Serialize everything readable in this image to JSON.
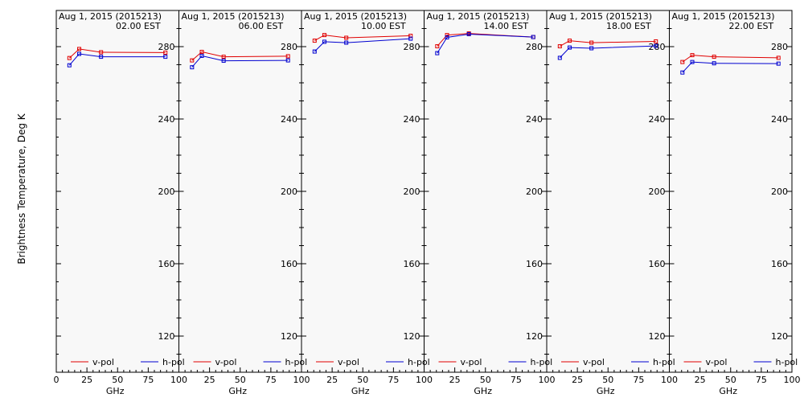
{
  "figure": {
    "ylabel": "Brightness Temperature, Deg K",
    "background": "#f8f8f8",
    "colors": {
      "v-pol": "#e00000",
      "h-pol": "#0000d0"
    }
  },
  "chart_data": [
    {
      "type": "line",
      "title": "Aug  1, 2015 (2015213)",
      "subtitle": "02.00 EST",
      "xlabel": "GHz",
      "ylabel": "Brightness Temperature, Deg K",
      "xlim": [
        0,
        100
      ],
      "ylim": [
        100,
        300
      ],
      "xticks": [
        0,
        25,
        50,
        75,
        100
      ],
      "yticks": [
        120,
        160,
        200,
        240,
        280
      ],
      "x": [
        10.7,
        18.7,
        36.5,
        89
      ],
      "series": [
        {
          "name": "v-pol",
          "color": "#e00000",
          "values": [
            273.7,
            278.7,
            276.9,
            276.7
          ]
        },
        {
          "name": "h-pol",
          "color": "#0000d0",
          "values": [
            269.7,
            276.0,
            274.4,
            274.4
          ]
        }
      ],
      "legend": "bottom"
    },
    {
      "type": "line",
      "title": "Aug  1, 2015 (2015213)",
      "subtitle": "06.00 EST",
      "xlabel": "GHz",
      "ylabel": "",
      "xlim": [
        0,
        100
      ],
      "ylim": [
        100,
        300
      ],
      "xticks": [
        0,
        25,
        50,
        75,
        100
      ],
      "yticks": [
        120,
        160,
        200,
        240,
        280
      ],
      "x": [
        10.7,
        18.7,
        36.5,
        89
      ],
      "series": [
        {
          "name": "v-pol",
          "color": "#e00000",
          "values": [
            272.4,
            277.1,
            274.4,
            274.7
          ]
        },
        {
          "name": "h-pol",
          "color": "#0000d0",
          "values": [
            268.6,
            274.9,
            272.2,
            272.4
          ]
        }
      ],
      "legend": "bottom"
    },
    {
      "type": "line",
      "title": "Aug  1, 2015 (2015213)",
      "subtitle": "10.00 EST",
      "xlabel": "GHz",
      "ylabel": "",
      "xlim": [
        0,
        100
      ],
      "ylim": [
        100,
        300
      ],
      "xticks": [
        0,
        25,
        50,
        75,
        100
      ],
      "yticks": [
        120,
        160,
        200,
        240,
        280
      ],
      "x": [
        10.7,
        18.7,
        36.5,
        89
      ],
      "series": [
        {
          "name": "v-pol",
          "color": "#e00000",
          "values": [
            283.3,
            286.4,
            284.9,
            286.0
          ]
        },
        {
          "name": "h-pol",
          "color": "#0000d0",
          "values": [
            277.3,
            282.7,
            282.2,
            284.4
          ]
        }
      ],
      "legend": "bottom"
    },
    {
      "type": "line",
      "title": "Aug  1, 2015 (2015213)",
      "subtitle": "14.00 EST",
      "xlabel": "GHz",
      "ylabel": "",
      "xlim": [
        0,
        100
      ],
      "ylim": [
        100,
        300
      ],
      "xticks": [
        0,
        25,
        50,
        75,
        100
      ],
      "yticks": [
        120,
        160,
        200,
        240,
        280
      ],
      "x": [
        10.7,
        18.7,
        36.5,
        89
      ],
      "series": [
        {
          "name": "v-pol",
          "color": "#e00000",
          "values": [
            280.2,
            286.4,
            287.3,
            285.3
          ]
        },
        {
          "name": "h-pol",
          "color": "#0000d0",
          "values": [
            276.4,
            285.1,
            286.9,
            285.3
          ]
        }
      ],
      "legend": "bottom"
    },
    {
      "type": "line",
      "title": "Aug  1, 2015 (2015213)",
      "subtitle": "18.00 EST",
      "xlabel": "GHz",
      "ylabel": "",
      "xlim": [
        0,
        100
      ],
      "ylim": [
        100,
        300
      ],
      "xticks": [
        0,
        25,
        50,
        75,
        100
      ],
      "yticks": [
        120,
        160,
        200,
        240,
        280
      ],
      "x": [
        10.7,
        18.7,
        36.5,
        89
      ],
      "series": [
        {
          "name": "v-pol",
          "color": "#e00000",
          "values": [
            280.2,
            283.3,
            282.2,
            282.9
          ]
        },
        {
          "name": "h-pol",
          "color": "#0000d0",
          "values": [
            273.8,
            279.5,
            279.1,
            280.4
          ]
        }
      ],
      "legend": "bottom"
    },
    {
      "type": "line",
      "title": "Aug  1, 2015 (2015213)",
      "subtitle": "22.00 EST",
      "xlabel": "GHz",
      "ylabel": "",
      "xlim": [
        0,
        100
      ],
      "ylim": [
        100,
        300
      ],
      "xticks": [
        0,
        25,
        50,
        75,
        100
      ],
      "yticks": [
        120,
        160,
        200,
        240,
        280
      ],
      "x": [
        10.7,
        18.7,
        36.5,
        89
      ],
      "series": [
        {
          "name": "v-pol",
          "color": "#e00000",
          "values": [
            271.5,
            275.3,
            274.4,
            273.8
          ]
        },
        {
          "name": "h-pol",
          "color": "#0000d0",
          "values": [
            265.7,
            271.5,
            270.8,
            270.6
          ]
        }
      ],
      "legend": "bottom"
    }
  ]
}
